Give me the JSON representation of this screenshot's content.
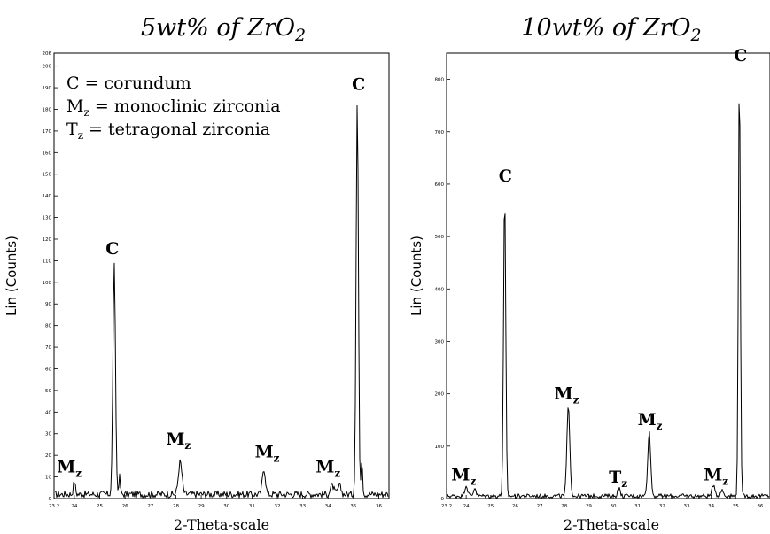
{
  "chart_data": [
    {
      "type": "line",
      "title": "5wt% of ZrO2",
      "xlabel": "2-Theta-scale",
      "ylabel": "Lin (Counts)",
      "xlim": [
        23.2,
        36.4
      ],
      "ylim": [
        0,
        206
      ],
      "x_ticks": [
        "23.2",
        "24",
        "25",
        "26",
        "27",
        "28",
        "29",
        "30",
        "31",
        "32",
        "33",
        "34",
        "35",
        "36"
      ],
      "y_ticks": [
        "0",
        "10",
        "20",
        "30",
        "40",
        "50",
        "60",
        "70",
        "80",
        "90",
        "100",
        "110",
        "120",
        "130",
        "140",
        "150",
        "160",
        "170",
        "180",
        "190",
        "200",
        "206"
      ],
      "baseline": 2,
      "series": [
        {
          "peaks": [
            {
              "x": 24.0,
              "y": 6,
              "w": 0.04
            },
            {
              "x": 25.57,
              "y": 106,
              "w": 0.05
            },
            {
              "x": 25.78,
              "y": 8,
              "w": 0.03
            },
            {
              "x": 28.17,
              "y": 15,
              "w": 0.07
            },
            {
              "x": 31.47,
              "y": 12,
              "w": 0.06
            },
            {
              "x": 34.16,
              "y": 4,
              "w": 0.07
            },
            {
              "x": 34.45,
              "y": 4,
              "w": 0.06
            },
            {
              "x": 35.15,
              "y": 182,
              "w": 0.045
            },
            {
              "x": 35.33,
              "y": 17,
              "w": 0.03
            }
          ]
        }
      ],
      "annotations": [
        {
          "label": "C",
          "x": 25.5,
          "y": 113
        },
        {
          "label": "M",
          "sub": "z",
          "x": 23.8,
          "y": 12
        },
        {
          "label": "M",
          "sub": "z",
          "x": 28.1,
          "y": 25
        },
        {
          "label": "M",
          "sub": "z",
          "x": 31.6,
          "y": 19
        },
        {
          "label": "M",
          "sub": "z",
          "x": 34.0,
          "y": 12
        },
        {
          "label": "C",
          "x": 35.2,
          "y": 189
        }
      ],
      "legend": {
        "position": "top-left",
        "items": [
          {
            "label": "C",
            "text": " = corundum"
          },
          {
            "label": "M",
            "sub": "z",
            "text": " = monoclinic zirconia"
          },
          {
            "label": "T",
            "sub": "z",
            "text": " = tetragonal zirconia"
          }
        ]
      }
    },
    {
      "type": "line",
      "title": "10wt% of ZrO2",
      "xlabel": "2-Theta-scale",
      "ylabel": "Lin (Counts)",
      "xlim": [
        23.2,
        36.4
      ],
      "ylim": [
        0,
        850
      ],
      "x_ticks": [
        "23.2",
        "24",
        "25",
        "26",
        "27",
        "28",
        "29",
        "30",
        "31",
        "32",
        "33",
        "34",
        "35",
        "36"
      ],
      "y_ticks": [
        "0",
        "100",
        "200",
        "300",
        "400",
        "500",
        "600",
        "700",
        "800"
      ],
      "baseline": 5,
      "series": [
        {
          "peaks": [
            {
              "x": 24.0,
              "y": 20,
              "w": 0.06
            },
            {
              "x": 24.35,
              "y": 16,
              "w": 0.05
            },
            {
              "x": 25.57,
              "y": 575,
              "w": 0.045
            },
            {
              "x": 28.17,
              "y": 170,
              "w": 0.06
            },
            {
              "x": 30.23,
              "y": 15,
              "w": 0.05
            },
            {
              "x": 31.47,
              "y": 122,
              "w": 0.06
            },
            {
              "x": 34.1,
              "y": 22,
              "w": 0.06
            },
            {
              "x": 34.45,
              "y": 12,
              "w": 0.05
            },
            {
              "x": 35.15,
              "y": 810,
              "w": 0.04
            }
          ]
        }
      ],
      "annotations": [
        {
          "label": "C",
          "x": 25.6,
          "y": 605
        },
        {
          "label": "M",
          "sub": "z",
          "x": 23.9,
          "y": 35
        },
        {
          "label": "M",
          "sub": "z",
          "x": 28.1,
          "y": 190
        },
        {
          "label": "T",
          "sub": "z",
          "x": 30.2,
          "y": 30
        },
        {
          "label": "M",
          "sub": "z",
          "x": 31.5,
          "y": 140
        },
        {
          "label": "M",
          "sub": "z",
          "x": 34.2,
          "y": 35
        },
        {
          "label": "C",
          "x": 35.2,
          "y": 835
        }
      ]
    }
  ]
}
